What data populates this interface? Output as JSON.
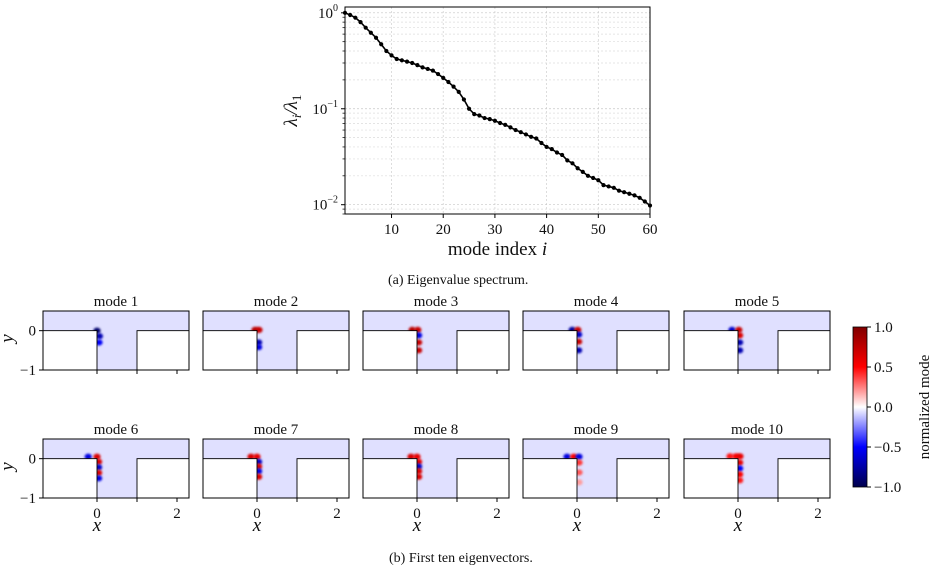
{
  "caption_a": "(a) Eigenvalue spectrum.",
  "caption_b": "(b) First ten eigenvectors.",
  "chart_data": [
    {
      "type": "line",
      "xlabel": "mode index i",
      "ylabel": "λi/λ1",
      "yscale": "log",
      "xlim": [
        1,
        60
      ],
      "ylim": [
        0.008,
        1.15
      ],
      "xticks": [
        10,
        20,
        30,
        40,
        50,
        60
      ],
      "yticks": [
        "10^0",
        "10^-1",
        "10^-2"
      ],
      "grid": true,
      "color": "#000000",
      "marker": "circle",
      "x": [
        1,
        2,
        3,
        4,
        5,
        6,
        7,
        8,
        9,
        10,
        11,
        12,
        13,
        14,
        15,
        16,
        17,
        18,
        19,
        20,
        21,
        22,
        23,
        24,
        25,
        26,
        27,
        28,
        29,
        30,
        31,
        32,
        33,
        34,
        35,
        36,
        37,
        38,
        39,
        40,
        41,
        42,
        43,
        44,
        45,
        46,
        47,
        48,
        49,
        50,
        51,
        52,
        53,
        54,
        55,
        56,
        57,
        58,
        59,
        60
      ],
      "y": [
        1.0,
        0.95,
        0.89,
        0.8,
        0.7,
        0.62,
        0.55,
        0.47,
        0.4,
        0.36,
        0.33,
        0.32,
        0.31,
        0.3,
        0.285,
        0.27,
        0.26,
        0.25,
        0.23,
        0.21,
        0.19,
        0.17,
        0.15,
        0.125,
        0.1,
        0.088,
        0.085,
        0.08,
        0.078,
        0.075,
        0.071,
        0.068,
        0.064,
        0.06,
        0.057,
        0.054,
        0.051,
        0.049,
        0.044,
        0.04,
        0.038,
        0.035,
        0.033,
        0.029,
        0.027,
        0.024,
        0.022,
        0.02,
        0.019,
        0.018,
        0.016,
        0.0155,
        0.015,
        0.014,
        0.0135,
        0.013,
        0.0125,
        0.0118,
        0.0108,
        0.0098
      ]
    },
    {
      "type": "heatmap",
      "panels": [
        {
          "title": "mode 1",
          "blobs": [
            {
              "x": 0.0,
              "y": 0.0,
              "v": -0.7
            },
            {
              "x": 0.06,
              "y": -0.14,
              "v": -0.55
            },
            {
              "x": 0.05,
              "y": -0.3,
              "v": -0.4
            }
          ]
        },
        {
          "title": "mode 2",
          "blobs": [
            {
              "x": -0.05,
              "y": 0.02,
              "v": 0.6
            },
            {
              "x": 0.05,
              "y": 0.02,
              "v": 0.55
            },
            {
              "x": 0.04,
              "y": -0.3,
              "v": -0.55
            },
            {
              "x": 0.04,
              "y": -0.42,
              "v": -0.45
            }
          ]
        },
        {
          "title": "mode 3",
          "blobs": [
            {
              "x": -0.12,
              "y": 0.02,
              "v": 0.6
            },
            {
              "x": 0.02,
              "y": 0.02,
              "v": 0.55
            },
            {
              "x": 0.04,
              "y": -0.12,
              "v": -0.45
            },
            {
              "x": 0.04,
              "y": -0.3,
              "v": 0.55
            },
            {
              "x": 0.04,
              "y": -0.5,
              "v": 0.55
            }
          ]
        },
        {
          "title": "mode 4",
          "blobs": [
            {
              "x": -0.12,
              "y": 0.02,
              "v": -0.6
            },
            {
              "x": 0.02,
              "y": 0.02,
              "v": 0.55
            },
            {
              "x": 0.04,
              "y": -0.1,
              "v": -0.5
            },
            {
              "x": 0.04,
              "y": -0.28,
              "v": 0.55
            },
            {
              "x": 0.04,
              "y": -0.5,
              "v": -0.55
            }
          ]
        },
        {
          "title": "mode 5",
          "blobs": [
            {
              "x": -0.15,
              "y": 0.02,
              "v": -0.5
            },
            {
              "x": 0.02,
              "y": 0.02,
              "v": 0.55
            },
            {
              "x": 0.04,
              "y": -0.12,
              "v": 0.5
            },
            {
              "x": 0.04,
              "y": -0.3,
              "v": -0.55
            },
            {
              "x": 0.04,
              "y": -0.5,
              "v": -0.55
            }
          ]
        },
        {
          "title": "mode 6",
          "blobs": [
            {
              "x": -0.22,
              "y": 0.05,
              "v": -0.45
            },
            {
              "x": 0.0,
              "y": 0.05,
              "v": 0.5
            },
            {
              "x": 0.04,
              "y": -0.08,
              "v": 0.5
            },
            {
              "x": 0.04,
              "y": -0.22,
              "v": -0.5
            },
            {
              "x": 0.04,
              "y": -0.36,
              "v": 0.5
            },
            {
              "x": 0.04,
              "y": -0.5,
              "v": -0.45
            }
          ]
        },
        {
          "title": "mode 7",
          "blobs": [
            {
              "x": -0.15,
              "y": 0.05,
              "v": 0.5
            },
            {
              "x": 0.0,
              "y": 0.05,
              "v": 0.45
            },
            {
              "x": 0.04,
              "y": -0.08,
              "v": -0.5
            },
            {
              "x": 0.04,
              "y": -0.2,
              "v": 0.5
            },
            {
              "x": 0.04,
              "y": -0.32,
              "v": -0.45
            },
            {
              "x": 0.04,
              "y": -0.46,
              "v": 0.5
            }
          ]
        },
        {
          "title": "mode 8",
          "blobs": [
            {
              "x": -0.15,
              "y": 0.05,
              "v": 0.5
            },
            {
              "x": 0.0,
              "y": 0.05,
              "v": 0.45
            },
            {
              "x": 0.04,
              "y": -0.08,
              "v": 0.45
            },
            {
              "x": 0.04,
              "y": -0.2,
              "v": -0.5
            },
            {
              "x": 0.04,
              "y": -0.32,
              "v": 0.5
            },
            {
              "x": 0.04,
              "y": -0.46,
              "v": 0.5
            }
          ]
        },
        {
          "title": "mode 9",
          "blobs": [
            {
              "x": -0.25,
              "y": 0.05,
              "v": -0.45
            },
            {
              "x": -0.08,
              "y": 0.05,
              "v": 0.4
            },
            {
              "x": 0.05,
              "y": 0.05,
              "v": -0.45
            },
            {
              "x": 0.05,
              "y": -0.1,
              "v": 0.3
            },
            {
              "x": 0.05,
              "y": -0.35,
              "v": 0.25
            },
            {
              "x": 0.05,
              "y": -0.6,
              "v": 0.15
            }
          ]
        },
        {
          "title": "mode 10",
          "blobs": [
            {
              "x": -0.2,
              "y": 0.06,
              "v": 0.35
            },
            {
              "x": -0.05,
              "y": 0.06,
              "v": 0.4
            },
            {
              "x": 0.05,
              "y": 0.06,
              "v": 0.45
            },
            {
              "x": 0.04,
              "y": -0.1,
              "v": 0.45
            },
            {
              "x": 0.04,
              "y": -0.25,
              "v": -0.4
            },
            {
              "x": 0.04,
              "y": -0.4,
              "v": 0.4
            },
            {
              "x": 0.04,
              "y": -0.55,
              "v": 0.35
            }
          ]
        }
      ],
      "xlabel": "x",
      "ylabel": "y",
      "xlim": [
        -1.35,
        2.3
      ],
      "ylim": [
        -1,
        0.5
      ],
      "xticks": [
        "0",
        "2"
      ],
      "yticks": [
        "0",
        "−1"
      ],
      "background_value": -0.06,
      "colormap": "seismic",
      "colorbar": {
        "label": "normalized mode",
        "range": [
          -1.0,
          1.0
        ],
        "ticks": [
          "1.0",
          "0.5",
          "0.0",
          "−0.5",
          "−1.0"
        ]
      }
    }
  ]
}
